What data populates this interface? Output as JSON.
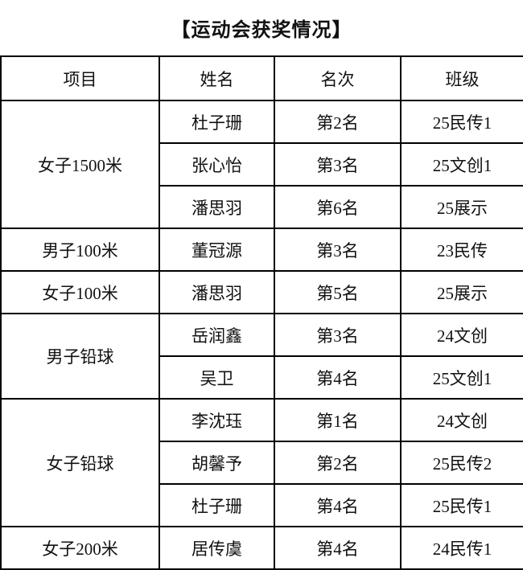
{
  "title": "【运动会获奖情况】",
  "colors": {
    "background": "#ffffff",
    "text": "#111111",
    "border": "#000000"
  },
  "table": {
    "headers": [
      "项目",
      "姓名",
      "名次",
      "班级"
    ],
    "groups": [
      {
        "event": "女子1500米",
        "entries": [
          {
            "name": "杜子珊",
            "rank": "第2名",
            "class": "25民传1"
          },
          {
            "name": "张心怡",
            "rank": "第3名",
            "class": "25文创1"
          },
          {
            "name": "潘思羽",
            "rank": "第6名",
            "class": "25展示"
          }
        ]
      },
      {
        "event": "男子100米",
        "entries": [
          {
            "name": "董冠源",
            "rank": "第3名",
            "class": "23民传"
          }
        ]
      },
      {
        "event": "女子100米",
        "entries": [
          {
            "name": "潘思羽",
            "rank": "第5名",
            "class": "25展示"
          }
        ]
      },
      {
        "event": "男子铅球",
        "entries": [
          {
            "name": "岳润鑫",
            "rank": "第3名",
            "class": "24文创"
          },
          {
            "name": "吴卫",
            "rank": "第4名",
            "class": "25文创1"
          }
        ]
      },
      {
        "event": "女子铅球",
        "entries": [
          {
            "name": "李沈珏",
            "rank": "第1名",
            "class": "24文创"
          },
          {
            "name": "胡馨予",
            "rank": "第2名",
            "class": "25民传2"
          },
          {
            "name": "杜子珊",
            "rank": "第4名",
            "class": "25民传1"
          }
        ]
      },
      {
        "event": "女子200米",
        "entries": [
          {
            "name": "居传虞",
            "rank": "第4名",
            "class": "24民传1"
          }
        ]
      }
    ]
  }
}
